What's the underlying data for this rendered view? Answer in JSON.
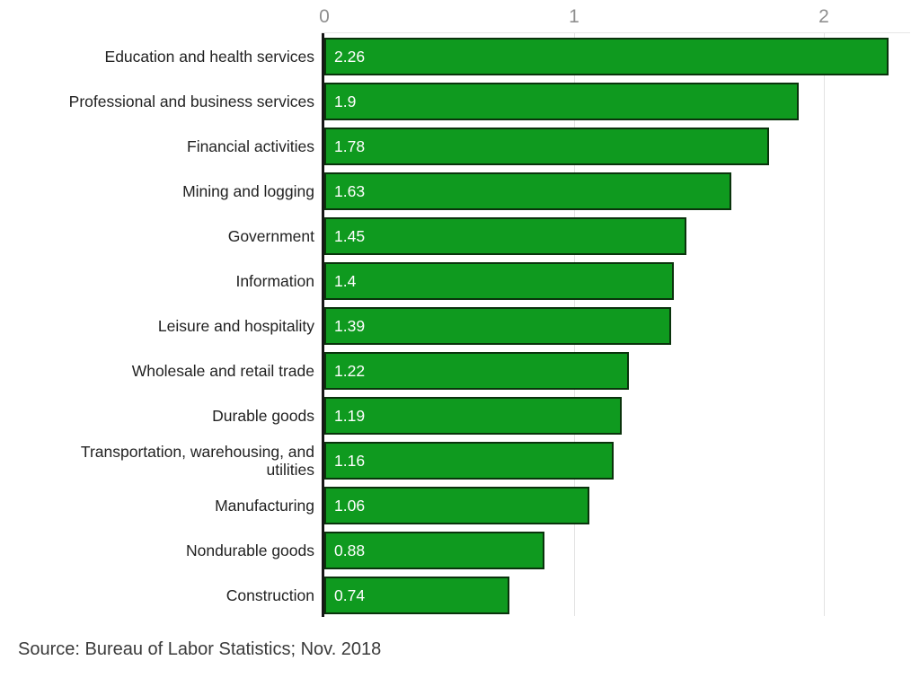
{
  "chart_data": {
    "type": "bar",
    "orientation": "horizontal",
    "title": "",
    "xlabel": "",
    "ylabel": "",
    "categories": [
      "Education and health services",
      "Professional and business services",
      "Financial activities",
      "Mining and logging",
      "Government",
      "Information",
      "Leisure and hospitality",
      "Wholesale and retail trade",
      "Durable goods",
      "Transportation, warehousing, and utilities",
      "Manufacturing",
      "Nondurable goods",
      "Construction"
    ],
    "values": [
      2.26,
      1.9,
      1.78,
      1.63,
      1.45,
      1.4,
      1.39,
      1.22,
      1.19,
      1.16,
      1.06,
      0.88,
      0.74
    ],
    "x_ticks": [
      0,
      1,
      2
    ],
    "xlim": [
      0,
      2.34
    ],
    "grid": true,
    "legend": false,
    "colors": {
      "bar_fill": "#0f9a1f",
      "bar_border": "#0a330c",
      "axis": "#161616",
      "gridline": "#e3e3e3",
      "tick_label": "#8f8f8f",
      "category_label": "#222222",
      "value_label": "#ffffff"
    },
    "source": "Source: Bureau of Labor Statistics; Nov. 2018"
  }
}
